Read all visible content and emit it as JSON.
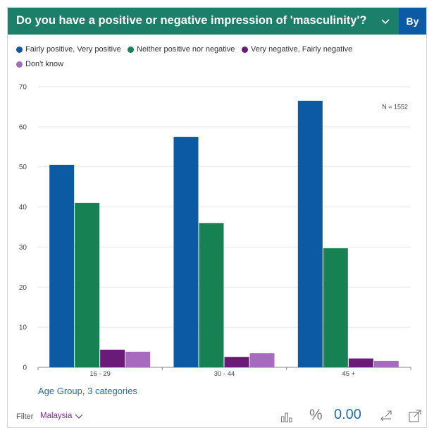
{
  "header": {
    "title": "Do you have a positive or negative impression of 'masculinity'?",
    "by_label": "By"
  },
  "legend": [
    {
      "label": "Fairly positive, Very positive",
      "color": "#0b5aa3"
    },
    {
      "label": "Neither positive nor negative",
      "color": "#168253"
    },
    {
      "label": "Very negative, Fairly negative",
      "color": "#6a1b7a"
    },
    {
      "label": "Don't know",
      "color": "#a66bbf"
    }
  ],
  "chart_data": {
    "type": "bar",
    "categories": [
      "16 - 29",
      "30 - 44",
      "45 +"
    ],
    "series": [
      {
        "name": "Fairly positive, Very positive",
        "values": [
          50.5,
          57.5,
          66.5
        ]
      },
      {
        "name": "Neither positive nor negative",
        "values": [
          41,
          36,
          29.7
        ]
      },
      {
        "name": "Very negative, Fairly negative",
        "values": [
          4.4,
          2.6,
          2.2
        ]
      },
      {
        "name": "Don't know",
        "values": [
          3.9,
          3.5,
          1.6
        ]
      }
    ],
    "ylim": [
      0,
      70
    ],
    "yticks": [
      0,
      10,
      20,
      30,
      40,
      50,
      60,
      70
    ],
    "annotation": "N = 1552",
    "xlabel": "Age Group, 3 categories",
    "grid": true
  },
  "footer": {
    "filter_label": "Filter",
    "filter_value": "Malaysia",
    "percent_symbol": "%",
    "decimal_value": "0.00"
  }
}
